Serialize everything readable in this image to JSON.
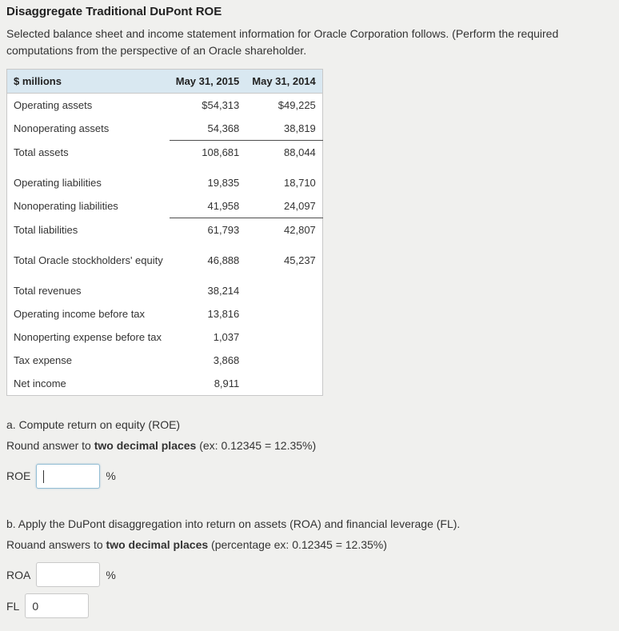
{
  "page": {
    "title": "Disaggregate Traditional DuPont ROE",
    "intro": "Selected balance sheet and income statement information for Oracle Corporation follows. (Perform the required computations from the perspective of an Oracle shareholder."
  },
  "table": {
    "headers": [
      "$ millions",
      "May 31, 2015",
      "May 31, 2014"
    ],
    "rows": [
      {
        "label": "Operating assets",
        "v2015": "$54,313",
        "v2014": "$49,225",
        "underline": false,
        "spacer_after": false
      },
      {
        "label": "Nonoperating assets",
        "v2015": "54,368",
        "v2014": "38,819",
        "underline": true,
        "spacer_after": false
      },
      {
        "label": "Total assets",
        "v2015": "108,681",
        "v2014": "88,044",
        "underline": false,
        "spacer_after": true
      },
      {
        "label": "Operating liabilities",
        "v2015": "19,835",
        "v2014": "18,710",
        "underline": false,
        "spacer_after": false
      },
      {
        "label": "Nonoperating liabilities",
        "v2015": "41,958",
        "v2014": "24,097",
        "underline": true,
        "spacer_after": false
      },
      {
        "label": "Total liabilities",
        "v2015": "61,793",
        "v2014": "42,807",
        "underline": false,
        "spacer_after": true
      },
      {
        "label": "Total Oracle stockholders' equity",
        "v2015": "46,888",
        "v2014": "45,237",
        "underline": false,
        "spacer_after": true
      },
      {
        "label": "Total revenues",
        "v2015": "38,214",
        "v2014": "",
        "underline": false,
        "spacer_after": false
      },
      {
        "label": "Operating income before tax",
        "v2015": "13,816",
        "v2014": "",
        "underline": false,
        "spacer_after": false
      },
      {
        "label": "Nonoperting expense before tax",
        "v2015": "1,037",
        "v2014": "",
        "underline": false,
        "spacer_after": false
      },
      {
        "label": "Tax expense",
        "v2015": "3,868",
        "v2014": "",
        "underline": false,
        "spacer_after": false
      },
      {
        "label": "Net income",
        "v2015": "8,911",
        "v2014": "",
        "underline": false,
        "spacer_after": false
      }
    ]
  },
  "part_a": {
    "heading": "a. Compute return on equity (ROE)",
    "instruction_prefix": "Round answer to ",
    "instruction_bold": "two decimal places",
    "instruction_suffix": " (ex: 0.12345 = 12.35%)",
    "roe_label": "ROE",
    "roe_value": "",
    "percent": "%"
  },
  "part_b": {
    "heading": "b. Apply the DuPont disaggregation into return on assets (ROA) and financial leverage (FL).",
    "instruction_prefix": "Rouand answers to ",
    "instruction_bold": "two decimal places",
    "instruction_suffix": " (percentage ex: 0.12345 = 12.35%)",
    "roa_label": "ROA",
    "roa_value": "",
    "percent": "%",
    "fl_label": "FL",
    "fl_value": "0"
  }
}
